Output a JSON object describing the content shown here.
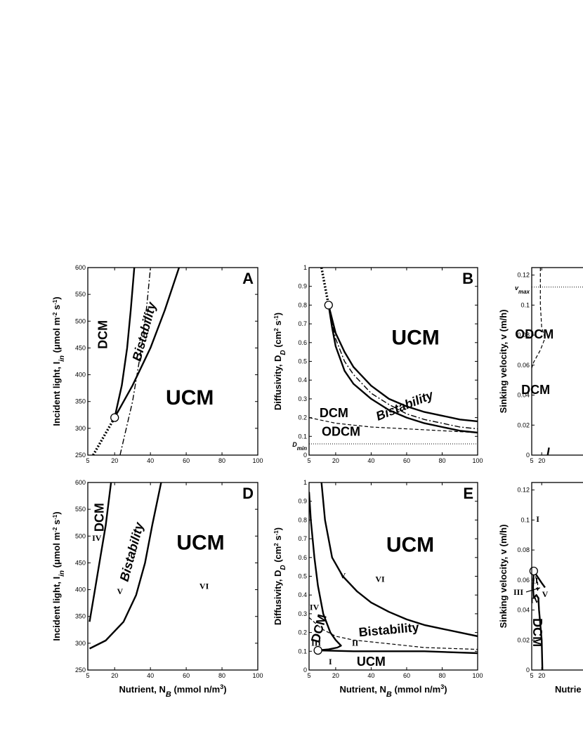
{
  "chart_data": [
    {
      "panel": "A",
      "type": "line",
      "xlabel": "",
      "ylabel": "Incident light, I_in (μmol m^-2 s^-1)",
      "xlim": [
        5,
        100
      ],
      "ylim": [
        250,
        600
      ],
      "xticks": [
        5,
        20,
        40,
        60,
        80,
        100
      ],
      "yticks": [
        250,
        300,
        350,
        400,
        450,
        500,
        550,
        600
      ],
      "region_labels": [
        {
          "text": "DCM",
          "x": 14,
          "y": 475,
          "rot": -90,
          "size": "mid"
        },
        {
          "text": "Bistability",
          "x": 37,
          "y": 480,
          "rot": -75,
          "size": "mid",
          "italic": true
        },
        {
          "text": "UCM",
          "x": 62,
          "y": 355,
          "rot": 0,
          "size": "big"
        }
      ],
      "point": [
        20,
        320
      ],
      "curves": [
        {
          "style": "solid",
          "points": [
            [
              20,
              320
            ],
            [
              24,
              380
            ],
            [
              27,
              450
            ],
            [
              29,
              520
            ],
            [
              31,
              600
            ]
          ]
        },
        {
          "style": "solid",
          "points": [
            [
              20,
              320
            ],
            [
              30,
              380
            ],
            [
              40,
              450
            ],
            [
              48,
              520
            ],
            [
              56,
              600
            ]
          ]
        },
        {
          "style": "dashdot",
          "points": [
            [
              23,
              250
            ],
            [
              30,
              350
            ],
            [
              35,
              450
            ],
            [
              38,
              530
            ],
            [
              40,
              600
            ]
          ]
        },
        {
          "style": "dotted",
          "points": [
            [
              8,
              250
            ],
            [
              14,
              285
            ],
            [
              20,
              320
            ]
          ]
        }
      ]
    },
    {
      "panel": "B",
      "type": "line",
      "xlabel": "",
      "ylabel": "Diffusivity, D_D (cm^2 s^-1)",
      "xlim": [
        5,
        100
      ],
      "ylim": [
        0,
        1
      ],
      "xticks": [
        5,
        20,
        40,
        60,
        80,
        100
      ],
      "yticks": [
        0,
        0.1,
        0.2,
        0.3,
        0.4,
        0.5,
        0.6,
        0.7,
        0.8,
        0.9,
        1
      ],
      "ref_line": {
        "label": "D_min",
        "y": 0.06
      },
      "region_labels": [
        {
          "text": "UCM",
          "x": 65,
          "y": 0.62,
          "rot": 0,
          "size": "big"
        },
        {
          "text": "Bistability",
          "x": 59,
          "y": 0.26,
          "rot": -22,
          "size": "small",
          "italic": true
        },
        {
          "text": "DCM",
          "x": 19,
          "y": 0.22,
          "rot": 0,
          "size": "mid"
        },
        {
          "text": "ODCM",
          "x": 23,
          "y": 0.12,
          "rot": 0,
          "size": "mid"
        }
      ],
      "point": [
        16,
        0.8
      ],
      "curves": [
        {
          "style": "solid",
          "points": [
            [
              16,
              0.8
            ],
            [
              20,
              0.65
            ],
            [
              25,
              0.55
            ],
            [
              30,
              0.47
            ],
            [
              40,
              0.37
            ],
            [
              50,
              0.3
            ],
            [
              60,
              0.26
            ],
            [
              70,
              0.23
            ],
            [
              80,
              0.21
            ],
            [
              90,
              0.19
            ],
            [
              100,
              0.18
            ]
          ]
        },
        {
          "style": "solid",
          "points": [
            [
              16,
              0.8
            ],
            [
              18,
              0.68
            ],
            [
              20,
              0.58
            ],
            [
              25,
              0.45
            ],
            [
              30,
              0.38
            ],
            [
              40,
              0.3
            ],
            [
              50,
              0.24
            ],
            [
              60,
              0.2
            ],
            [
              70,
              0.17
            ],
            [
              80,
              0.15
            ],
            [
              90,
              0.13
            ],
            [
              100,
              0.12
            ]
          ]
        },
        {
          "style": "dashdot",
          "points": [
            [
              16,
              0.8
            ],
            [
              20,
              0.62
            ],
            [
              25,
              0.5
            ],
            [
              30,
              0.43
            ],
            [
              40,
              0.33
            ],
            [
              50,
              0.27
            ],
            [
              60,
              0.22
            ],
            [
              70,
              0.19
            ],
            [
              80,
              0.17
            ],
            [
              90,
              0.15
            ],
            [
              100,
              0.14
            ]
          ]
        },
        {
          "style": "dashed",
          "points": [
            [
              5,
              0.2
            ],
            [
              20,
              0.17
            ],
            [
              40,
              0.15
            ],
            [
              60,
              0.14
            ],
            [
              80,
              0.13
            ],
            [
              100,
              0.12
            ]
          ]
        },
        {
          "style": "dotted",
          "points": [
            [
              12,
              1.0
            ],
            [
              14,
              0.9
            ],
            [
              16,
              0.8
            ]
          ]
        }
      ]
    },
    {
      "panel": "C",
      "type": "line",
      "xlabel": "",
      "ylabel": "Sinking velocity, v (m/h)",
      "xlim": [
        5,
        100
      ],
      "ylim": [
        0,
        0.125
      ],
      "xticks": [
        5,
        20
      ],
      "yticks": [
        0,
        0.02,
        0.04,
        0.06,
        0.08,
        0.1,
        0.12
      ],
      "ref_line": {
        "label": "v_max",
        "y": 0.112
      },
      "region_labels": [
        {
          "text": "ODCM",
          "x": 9,
          "y": 0.08,
          "rot": 0,
          "size": "mid"
        },
        {
          "text": "DCM",
          "x": 11,
          "y": 0.043,
          "rot": 0,
          "size": "mid"
        }
      ],
      "curves": [
        {
          "style": "dashed",
          "points": [
            [
              18,
              0.125
            ],
            [
              18,
              0.1
            ],
            [
              20,
              0.085
            ],
            [
              25,
              0.078
            ],
            [
              18,
              0.07
            ],
            [
              8,
              0.062
            ],
            [
              5,
              0.058
            ]
          ]
        },
        {
          "style": "solid",
          "points": [
            [
              29,
              0.0
            ],
            [
              31,
              0.005
            ]
          ]
        }
      ]
    },
    {
      "panel": "D",
      "type": "line",
      "xlabel": "Nutrient, N_B (mmol n/m^3)",
      "ylabel": "Incident light, I_in (μmol m^-2 s^-1)",
      "xlim": [
        5,
        100
      ],
      "ylim": [
        250,
        600
      ],
      "xticks": [
        5,
        20,
        40,
        60,
        80,
        100
      ],
      "yticks": [
        250,
        300,
        350,
        400,
        450,
        500,
        550,
        600
      ],
      "region_labels": [
        {
          "text": "DCM",
          "x": 12,
          "y": 535,
          "rot": -90,
          "size": "mid"
        },
        {
          "text": "Bistability",
          "x": 30,
          "y": 470,
          "rot": -75,
          "size": "mid",
          "italic": true
        },
        {
          "text": "UCM",
          "x": 68,
          "y": 485,
          "rot": 0,
          "size": "big"
        },
        {
          "text": "IV",
          "x": 10,
          "y": 495,
          "rot": 0,
          "size": "roman"
        },
        {
          "text": "V",
          "x": 23,
          "y": 395,
          "rot": 0,
          "size": "roman"
        },
        {
          "text": "VI",
          "x": 70,
          "y": 405,
          "rot": 0,
          "size": "roman"
        }
      ],
      "curves": [
        {
          "style": "solid",
          "points": [
            [
              6,
              340
            ],
            [
              9,
              400
            ],
            [
              12,
              460
            ],
            [
              15,
              520
            ],
            [
              18,
              600
            ]
          ]
        },
        {
          "style": "solid",
          "points": [
            [
              6,
              290
            ],
            [
              15,
              305
            ],
            [
              25,
              340
            ],
            [
              32,
              390
            ],
            [
              37,
              450
            ],
            [
              41,
              520
            ],
            [
              46,
              600
            ]
          ]
        }
      ]
    },
    {
      "panel": "E",
      "type": "line",
      "xlabel": "Nutrient, N_B (mmol n/m^3)",
      "ylabel": "Diffusivity, D_D (cm^2 s^-1)",
      "xlim": [
        5,
        100
      ],
      "ylim": [
        0,
        1
      ],
      "xticks": [
        5,
        20,
        40,
        60,
        80,
        100
      ],
      "yticks": [
        0,
        0.1,
        0.2,
        0.3,
        0.4,
        0.5,
        0.6,
        0.7,
        0.8,
        0.9,
        1
      ],
      "region_labels": [
        {
          "text": "UCM",
          "x": 62,
          "y": 0.66,
          "rot": 0,
          "size": "big"
        },
        {
          "text": "Bistability",
          "x": 50,
          "y": 0.21,
          "rot": -5,
          "size": "mid",
          "italic": false
        },
        {
          "text": "UCM",
          "x": 40,
          "y": 0.04,
          "rot": 0,
          "size": "mid"
        },
        {
          "text": "DCM",
          "x": 11,
          "y": 0.22,
          "rot": -75,
          "size": "small",
          "italic": false
        },
        {
          "text": "IV",
          "x": 8,
          "y": 0.33,
          "rot": 0,
          "size": "roman"
        },
        {
          "text": "V",
          "x": 24,
          "y": 0.5,
          "rot": 0,
          "size": "roman"
        },
        {
          "text": "VI",
          "x": 45,
          "y": 0.48,
          "rot": 0,
          "size": "roman"
        },
        {
          "text": "III",
          "x": 9,
          "y": 0.14,
          "rot": 0,
          "size": "roman"
        },
        {
          "text": "II",
          "x": 31,
          "y": 0.14,
          "rot": 0,
          "size": "roman"
        },
        {
          "text": "I",
          "x": 17,
          "y": 0.04,
          "rot": 0,
          "size": "roman"
        }
      ],
      "point": [
        10,
        0.105
      ],
      "curves": [
        {
          "style": "solid",
          "points": [
            [
              12,
              1.0
            ],
            [
              14,
              0.8
            ],
            [
              18,
              0.6
            ],
            [
              24,
              0.5
            ],
            [
              32,
              0.42
            ],
            [
              40,
              0.36
            ],
            [
              50,
              0.31
            ],
            [
              60,
              0.27
            ],
            [
              70,
              0.24
            ],
            [
              80,
              0.22
            ],
            [
              90,
              0.2
            ],
            [
              100,
              0.18
            ]
          ]
        },
        {
          "style": "solid",
          "points": [
            [
              5,
              0.95
            ],
            [
              6,
              0.8
            ],
            [
              8,
              0.6
            ],
            [
              10,
              0.45
            ],
            [
              13,
              0.3
            ],
            [
              17,
              0.2
            ],
            [
              20,
              0.16
            ],
            [
              23,
              0.13
            ],
            [
              21,
              0.12
            ],
            [
              16,
              0.11
            ],
            [
              10,
              0.105
            ]
          ]
        },
        {
          "style": "solid",
          "points": [
            [
              10,
              0.105
            ],
            [
              30,
              0.1
            ],
            [
              50,
              0.1
            ],
            [
              70,
              0.1
            ],
            [
              100,
              0.09
            ]
          ]
        },
        {
          "style": "dashed",
          "points": [
            [
              5,
              0.28
            ],
            [
              12,
              0.22
            ],
            [
              20,
              0.18
            ],
            [
              30,
              0.16
            ],
            [
              50,
              0.14
            ],
            [
              70,
              0.12
            ],
            [
              100,
              0.11
            ]
          ]
        }
      ]
    },
    {
      "panel": "F",
      "type": "line",
      "xlabel": "",
      "ylabel": "Sinking velocity, v (m/h)",
      "xlim": [
        5,
        100
      ],
      "ylim": [
        0,
        0.125
      ],
      "xticks": [
        5,
        20
      ],
      "yticks": [
        0,
        0.02,
        0.04,
        0.06,
        0.08,
        0.1,
        0.12
      ],
      "region_labels": [
        {
          "text": "I",
          "x": 14,
          "y": 0.1,
          "rot": 0,
          "size": "roman"
        },
        {
          "text": "II",
          "x": 10,
          "y": 0.059,
          "rot": 0,
          "size": "roman"
        },
        {
          "text": "IV",
          "x": 10,
          "y": 0.046,
          "rot": 0,
          "size": "roman"
        },
        {
          "text": "V",
          "x": 25,
          "y": 0.05,
          "rot": 0,
          "size": "roman"
        },
        {
          "text": "DCM",
          "x": 12,
          "y": 0.025,
          "rot": 90,
          "size": "mid"
        }
      ],
      "arrow_label": {
        "text": "III",
        "x": 5,
        "y": 0.052
      },
      "point": [
        8,
        0.066
      ],
      "curves": [
        {
          "style": "solid",
          "points": [
            [
              8,
              0.066
            ],
            [
              14,
              0.062
            ],
            [
              20,
              0.058
            ],
            [
              25,
              0.055
            ]
          ]
        },
        {
          "style": "solid",
          "points": [
            [
              8,
              0.066
            ],
            [
              7,
              0.055
            ],
            [
              8,
              0.048
            ],
            [
              12,
              0.05
            ],
            [
              15,
              0.048
            ],
            [
              16,
              0.04
            ],
            [
              18,
              0.03
            ],
            [
              20,
              0.02
            ],
            [
              21,
              0.0
            ]
          ]
        },
        {
          "style": "dashed",
          "points": [
            [
              8,
              0.066
            ],
            [
              11,
              0.062
            ],
            [
              14,
              0.058
            ],
            [
              14,
              0.052
            ]
          ]
        }
      ]
    }
  ],
  "partial_text": {
    "C_xlabel_fragment": "",
    "F_xlabel_fragment": "Nutrie",
    "F_region_fragment": "Bistab"
  }
}
